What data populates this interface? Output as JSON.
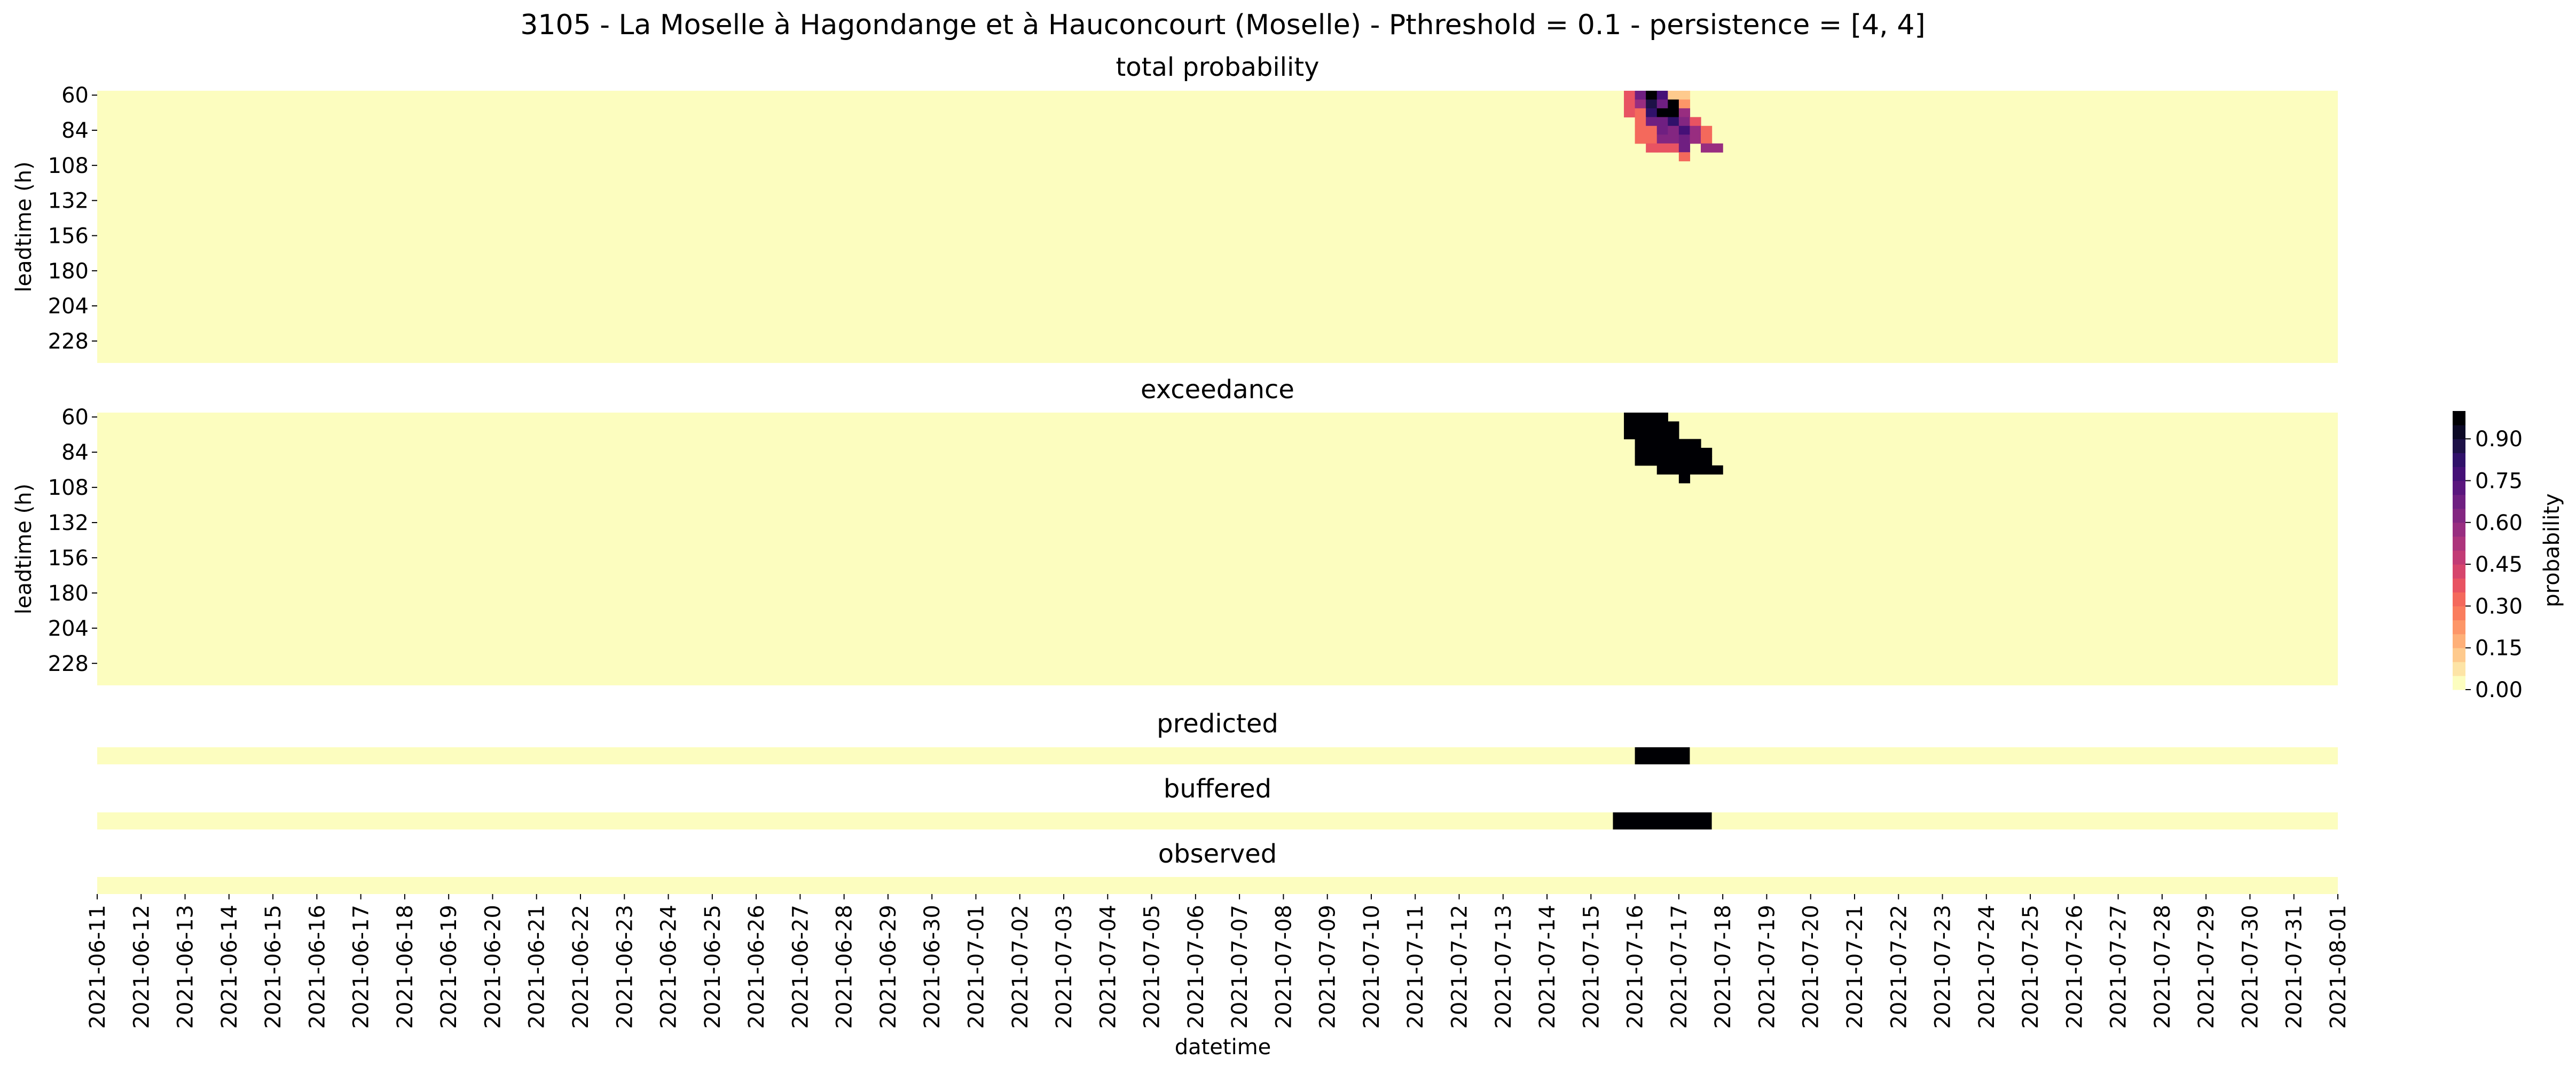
{
  "chart_data": {
    "type": "heatmap",
    "title": "3105 - La Moselle à Hagondange et à Hauconcourt (Moselle) - Pthreshold = 0.1 - persistence = [4, 4]",
    "xlabel": "datetime",
    "x_ticks": [
      "2021-06-11",
      "2021-06-12",
      "2021-06-13",
      "2021-06-14",
      "2021-06-15",
      "2021-06-16",
      "2021-06-17",
      "2021-06-18",
      "2021-06-19",
      "2021-06-20",
      "2021-06-21",
      "2021-06-22",
      "2021-06-23",
      "2021-06-24",
      "2021-06-25",
      "2021-06-26",
      "2021-06-27",
      "2021-06-28",
      "2021-06-29",
      "2021-06-30",
      "2021-07-01",
      "2021-07-02",
      "2021-07-03",
      "2021-07-04",
      "2021-07-05",
      "2021-07-06",
      "2021-07-07",
      "2021-07-08",
      "2021-07-09",
      "2021-07-10",
      "2021-07-11",
      "2021-07-12",
      "2021-07-13",
      "2021-07-14",
      "2021-07-15",
      "2021-07-16",
      "2021-07-17",
      "2021-07-18",
      "2021-07-19",
      "2021-07-20",
      "2021-07-21",
      "2021-07-22",
      "2021-07-23",
      "2021-07-24",
      "2021-07-25",
      "2021-07-26",
      "2021-07-27",
      "2021-07-28",
      "2021-07-29",
      "2021-07-30",
      "2021-07-31",
      "2021-08-01"
    ],
    "x_start": "2021-06-11",
    "x_end": "2021-08-01",
    "time_step_hours": 6,
    "leadtime_ticks": [
      "60",
      "84",
      "108",
      "132",
      "156",
      "180",
      "204",
      "228"
    ],
    "leadtime_range_h": [
      60,
      246
    ],
    "leadtime_step_h": 6,
    "panels": [
      {
        "title": "total probability",
        "ylabel": "leadtime (h)",
        "cells": [
          {
            "date": "2021-07-15 18:00",
            "leadtime": 60,
            "value": 0.35
          },
          {
            "date": "2021-07-16 00:00",
            "leadtime": 60,
            "value": 0.65
          },
          {
            "date": "2021-07-16 06:00",
            "leadtime": 60,
            "value": 0.95
          },
          {
            "date": "2021-07-16 12:00",
            "leadtime": 60,
            "value": 0.75
          },
          {
            "date": "2021-07-16 18:00",
            "leadtime": 60,
            "value": 0.1
          },
          {
            "date": "2021-07-17 00:00",
            "leadtime": 60,
            "value": 0.1
          },
          {
            "date": "2021-07-15 18:00",
            "leadtime": 66,
            "value": 0.35
          },
          {
            "date": "2021-07-16 00:00",
            "leadtime": 66,
            "value": 0.55
          },
          {
            "date": "2021-07-16 06:00",
            "leadtime": 66,
            "value": 0.85
          },
          {
            "date": "2021-07-16 12:00",
            "leadtime": 66,
            "value": 0.65
          },
          {
            "date": "2021-07-16 18:00",
            "leadtime": 66,
            "value": 0.95
          },
          {
            "date": "2021-07-17 00:00",
            "leadtime": 66,
            "value": 0.2
          },
          {
            "date": "2021-07-15 18:00",
            "leadtime": 72,
            "value": 0.35
          },
          {
            "date": "2021-07-16 00:00",
            "leadtime": 72,
            "value": 0.3
          },
          {
            "date": "2021-07-16 06:00",
            "leadtime": 72,
            "value": 0.8
          },
          {
            "date": "2021-07-16 12:00",
            "leadtime": 72,
            "value": 0.95
          },
          {
            "date": "2021-07-16 18:00",
            "leadtime": 72,
            "value": 0.95
          },
          {
            "date": "2021-07-17 00:00",
            "leadtime": 72,
            "value": 0.55
          },
          {
            "date": "2021-07-16 00:00",
            "leadtime": 78,
            "value": 0.3
          },
          {
            "date": "2021-07-16 06:00",
            "leadtime": 78,
            "value": 0.65
          },
          {
            "date": "2021-07-16 12:00",
            "leadtime": 78,
            "value": 0.65
          },
          {
            "date": "2021-07-16 18:00",
            "leadtime": 78,
            "value": 0.8
          },
          {
            "date": "2021-07-17 00:00",
            "leadtime": 78,
            "value": 0.6
          },
          {
            "date": "2021-07-17 06:00",
            "leadtime": 78,
            "value": 0.35
          },
          {
            "date": "2021-07-16 00:00",
            "leadtime": 84,
            "value": 0.3
          },
          {
            "date": "2021-07-16 06:00",
            "leadtime": 84,
            "value": 0.3
          },
          {
            "date": "2021-07-16 12:00",
            "leadtime": 84,
            "value": 0.65
          },
          {
            "date": "2021-07-16 18:00",
            "leadtime": 84,
            "value": 0.6
          },
          {
            "date": "2021-07-17 00:00",
            "leadtime": 84,
            "value": 0.75
          },
          {
            "date": "2021-07-17 06:00",
            "leadtime": 84,
            "value": 0.55
          },
          {
            "date": "2021-07-17 12:00",
            "leadtime": 84,
            "value": 0.3
          },
          {
            "date": "2021-07-16 00:00",
            "leadtime": 90,
            "value": 0.3
          },
          {
            "date": "2021-07-16 06:00",
            "leadtime": 90,
            "value": 0.3
          },
          {
            "date": "2021-07-16 12:00",
            "leadtime": 90,
            "value": 0.6
          },
          {
            "date": "2021-07-16 18:00",
            "leadtime": 90,
            "value": 0.6
          },
          {
            "date": "2021-07-17 00:00",
            "leadtime": 90,
            "value": 0.65
          },
          {
            "date": "2021-07-17 06:00",
            "leadtime": 90,
            "value": 0.55
          },
          {
            "date": "2021-07-17 12:00",
            "leadtime": 90,
            "value": 0.3
          },
          {
            "date": "2021-07-16 06:00",
            "leadtime": 96,
            "value": 0.35
          },
          {
            "date": "2021-07-16 12:00",
            "leadtime": 96,
            "value": 0.35
          },
          {
            "date": "2021-07-16 18:00",
            "leadtime": 96,
            "value": 0.35
          },
          {
            "date": "2021-07-17 00:00",
            "leadtime": 96,
            "value": 0.65
          },
          {
            "date": "2021-07-17 12:00",
            "leadtime": 96,
            "value": 0.55
          },
          {
            "date": "2021-07-17 18:00",
            "leadtime": 96,
            "value": 0.55
          },
          {
            "date": "2021-07-17 00:00",
            "leadtime": 102,
            "value": 0.3
          }
        ]
      },
      {
        "title": "exceedance",
        "ylabel": "leadtime (h)",
        "cells": [
          {
            "date": "2021-07-15 18:00",
            "leadtime": 60,
            "value": 1
          },
          {
            "date": "2021-07-16 00:00",
            "leadtime": 60,
            "value": 1
          },
          {
            "date": "2021-07-16 06:00",
            "leadtime": 60,
            "value": 1
          },
          {
            "date": "2021-07-16 12:00",
            "leadtime": 60,
            "value": 1
          },
          {
            "date": "2021-07-15 18:00",
            "leadtime": 66,
            "value": 1
          },
          {
            "date": "2021-07-16 00:00",
            "leadtime": 66,
            "value": 1
          },
          {
            "date": "2021-07-16 06:00",
            "leadtime": 66,
            "value": 1
          },
          {
            "date": "2021-07-16 12:00",
            "leadtime": 66,
            "value": 1
          },
          {
            "date": "2021-07-16 18:00",
            "leadtime": 66,
            "value": 1
          },
          {
            "date": "2021-07-15 18:00",
            "leadtime": 72,
            "value": 1
          },
          {
            "date": "2021-07-16 00:00",
            "leadtime": 72,
            "value": 1
          },
          {
            "date": "2021-07-16 06:00",
            "leadtime": 72,
            "value": 1
          },
          {
            "date": "2021-07-16 12:00",
            "leadtime": 72,
            "value": 1
          },
          {
            "date": "2021-07-16 18:00",
            "leadtime": 72,
            "value": 1
          },
          {
            "date": "2021-07-16 00:00",
            "leadtime": 78,
            "value": 1
          },
          {
            "date": "2021-07-16 06:00",
            "leadtime": 78,
            "value": 1
          },
          {
            "date": "2021-07-16 12:00",
            "leadtime": 78,
            "value": 1
          },
          {
            "date": "2021-07-16 18:00",
            "leadtime": 78,
            "value": 1
          },
          {
            "date": "2021-07-17 00:00",
            "leadtime": 78,
            "value": 1
          },
          {
            "date": "2021-07-17 06:00",
            "leadtime": 78,
            "value": 1
          },
          {
            "date": "2021-07-16 00:00",
            "leadtime": 84,
            "value": 1
          },
          {
            "date": "2021-07-16 06:00",
            "leadtime": 84,
            "value": 1
          },
          {
            "date": "2021-07-16 12:00",
            "leadtime": 84,
            "value": 1
          },
          {
            "date": "2021-07-16 18:00",
            "leadtime": 84,
            "value": 1
          },
          {
            "date": "2021-07-17 00:00",
            "leadtime": 84,
            "value": 1
          },
          {
            "date": "2021-07-17 06:00",
            "leadtime": 84,
            "value": 1
          },
          {
            "date": "2021-07-17 12:00",
            "leadtime": 84,
            "value": 1
          },
          {
            "date": "2021-07-16 00:00",
            "leadtime": 90,
            "value": 1
          },
          {
            "date": "2021-07-16 06:00",
            "leadtime": 90,
            "value": 1
          },
          {
            "date": "2021-07-16 12:00",
            "leadtime": 90,
            "value": 1
          },
          {
            "date": "2021-07-16 18:00",
            "leadtime": 90,
            "value": 1
          },
          {
            "date": "2021-07-17 00:00",
            "leadtime": 90,
            "value": 1
          },
          {
            "date": "2021-07-17 06:00",
            "leadtime": 90,
            "value": 1
          },
          {
            "date": "2021-07-17 12:00",
            "leadtime": 90,
            "value": 1
          },
          {
            "date": "2021-07-16 12:00",
            "leadtime": 96,
            "value": 1
          },
          {
            "date": "2021-07-16 18:00",
            "leadtime": 96,
            "value": 1
          },
          {
            "date": "2021-07-17 00:00",
            "leadtime": 96,
            "value": 1
          },
          {
            "date": "2021-07-17 06:00",
            "leadtime": 96,
            "value": 1
          },
          {
            "date": "2021-07-17 12:00",
            "leadtime": 96,
            "value": 1
          },
          {
            "date": "2021-07-17 18:00",
            "leadtime": 96,
            "value": 1
          },
          {
            "date": "2021-07-17 00:00",
            "leadtime": 102,
            "value": 1
          }
        ]
      }
    ],
    "strips": [
      {
        "title": "predicted",
        "events": [
          {
            "start": "2021-07-16 00:00",
            "end": "2021-07-17 06:00",
            "value": 1
          }
        ]
      },
      {
        "title": "buffered",
        "events": [
          {
            "start": "2021-07-15 12:00",
            "end": "2021-07-17 18:00",
            "value": 1
          }
        ]
      },
      {
        "title": "observed",
        "events": []
      }
    ],
    "colorbar": {
      "label": "probability",
      "range": [
        0,
        1
      ],
      "ticks": [
        "0.00",
        "0.15",
        "0.30",
        "0.45",
        "0.60",
        "0.75",
        "0.90"
      ],
      "levels": 20,
      "colormap": "magma_r",
      "colors": [
        "#fcfdbf",
        "#fde4a6",
        "#feca8d",
        "#feb078",
        "#fd9668",
        "#fa7d5e",
        "#f4695c",
        "#e85362",
        "#d6456c",
        "#c23b75",
        "#ad347c",
        "#982d80",
        "#832681",
        "#6f1f81",
        "#5a167e",
        "#451077",
        "#30116a",
        "#1d1147",
        "#0c0926",
        "#000004"
      ]
    },
    "grid": false,
    "legend": "none"
  }
}
